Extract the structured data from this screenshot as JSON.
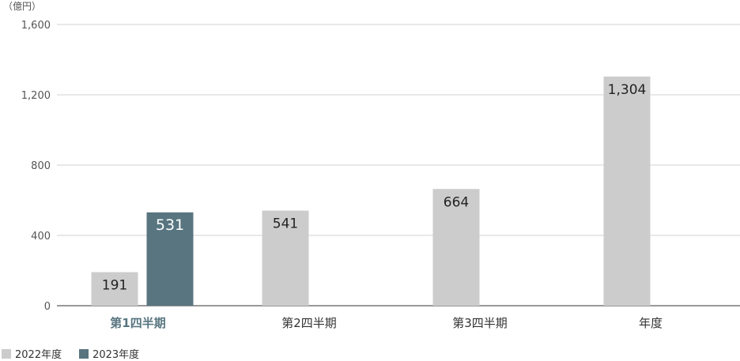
{
  "chart_data": {
    "type": "bar",
    "unit_label": "（億円）",
    "categories": [
      "第1四半期",
      "第2四半期",
      "第3四半期",
      "年度"
    ],
    "highlight_category_index": 0,
    "series": [
      {
        "name": "2022年度",
        "color": "#cccccc",
        "values": [
          191,
          541,
          664,
          1304
        ],
        "labels": [
          "191",
          "541",
          "664",
          "1,304"
        ]
      },
      {
        "name": "2023年度",
        "color": "#587580",
        "values": [
          531,
          null,
          null,
          null
        ],
        "labels": [
          "531",
          "",
          "",
          ""
        ]
      }
    ],
    "ylim": [
      0,
      1600
    ],
    "yticks": [
      0,
      400,
      800,
      1200,
      1600
    ],
    "ytick_labels": [
      "0",
      "400",
      "800",
      "1,200",
      "1,600"
    ],
    "grid": true,
    "legend_position": "bottom-left"
  }
}
